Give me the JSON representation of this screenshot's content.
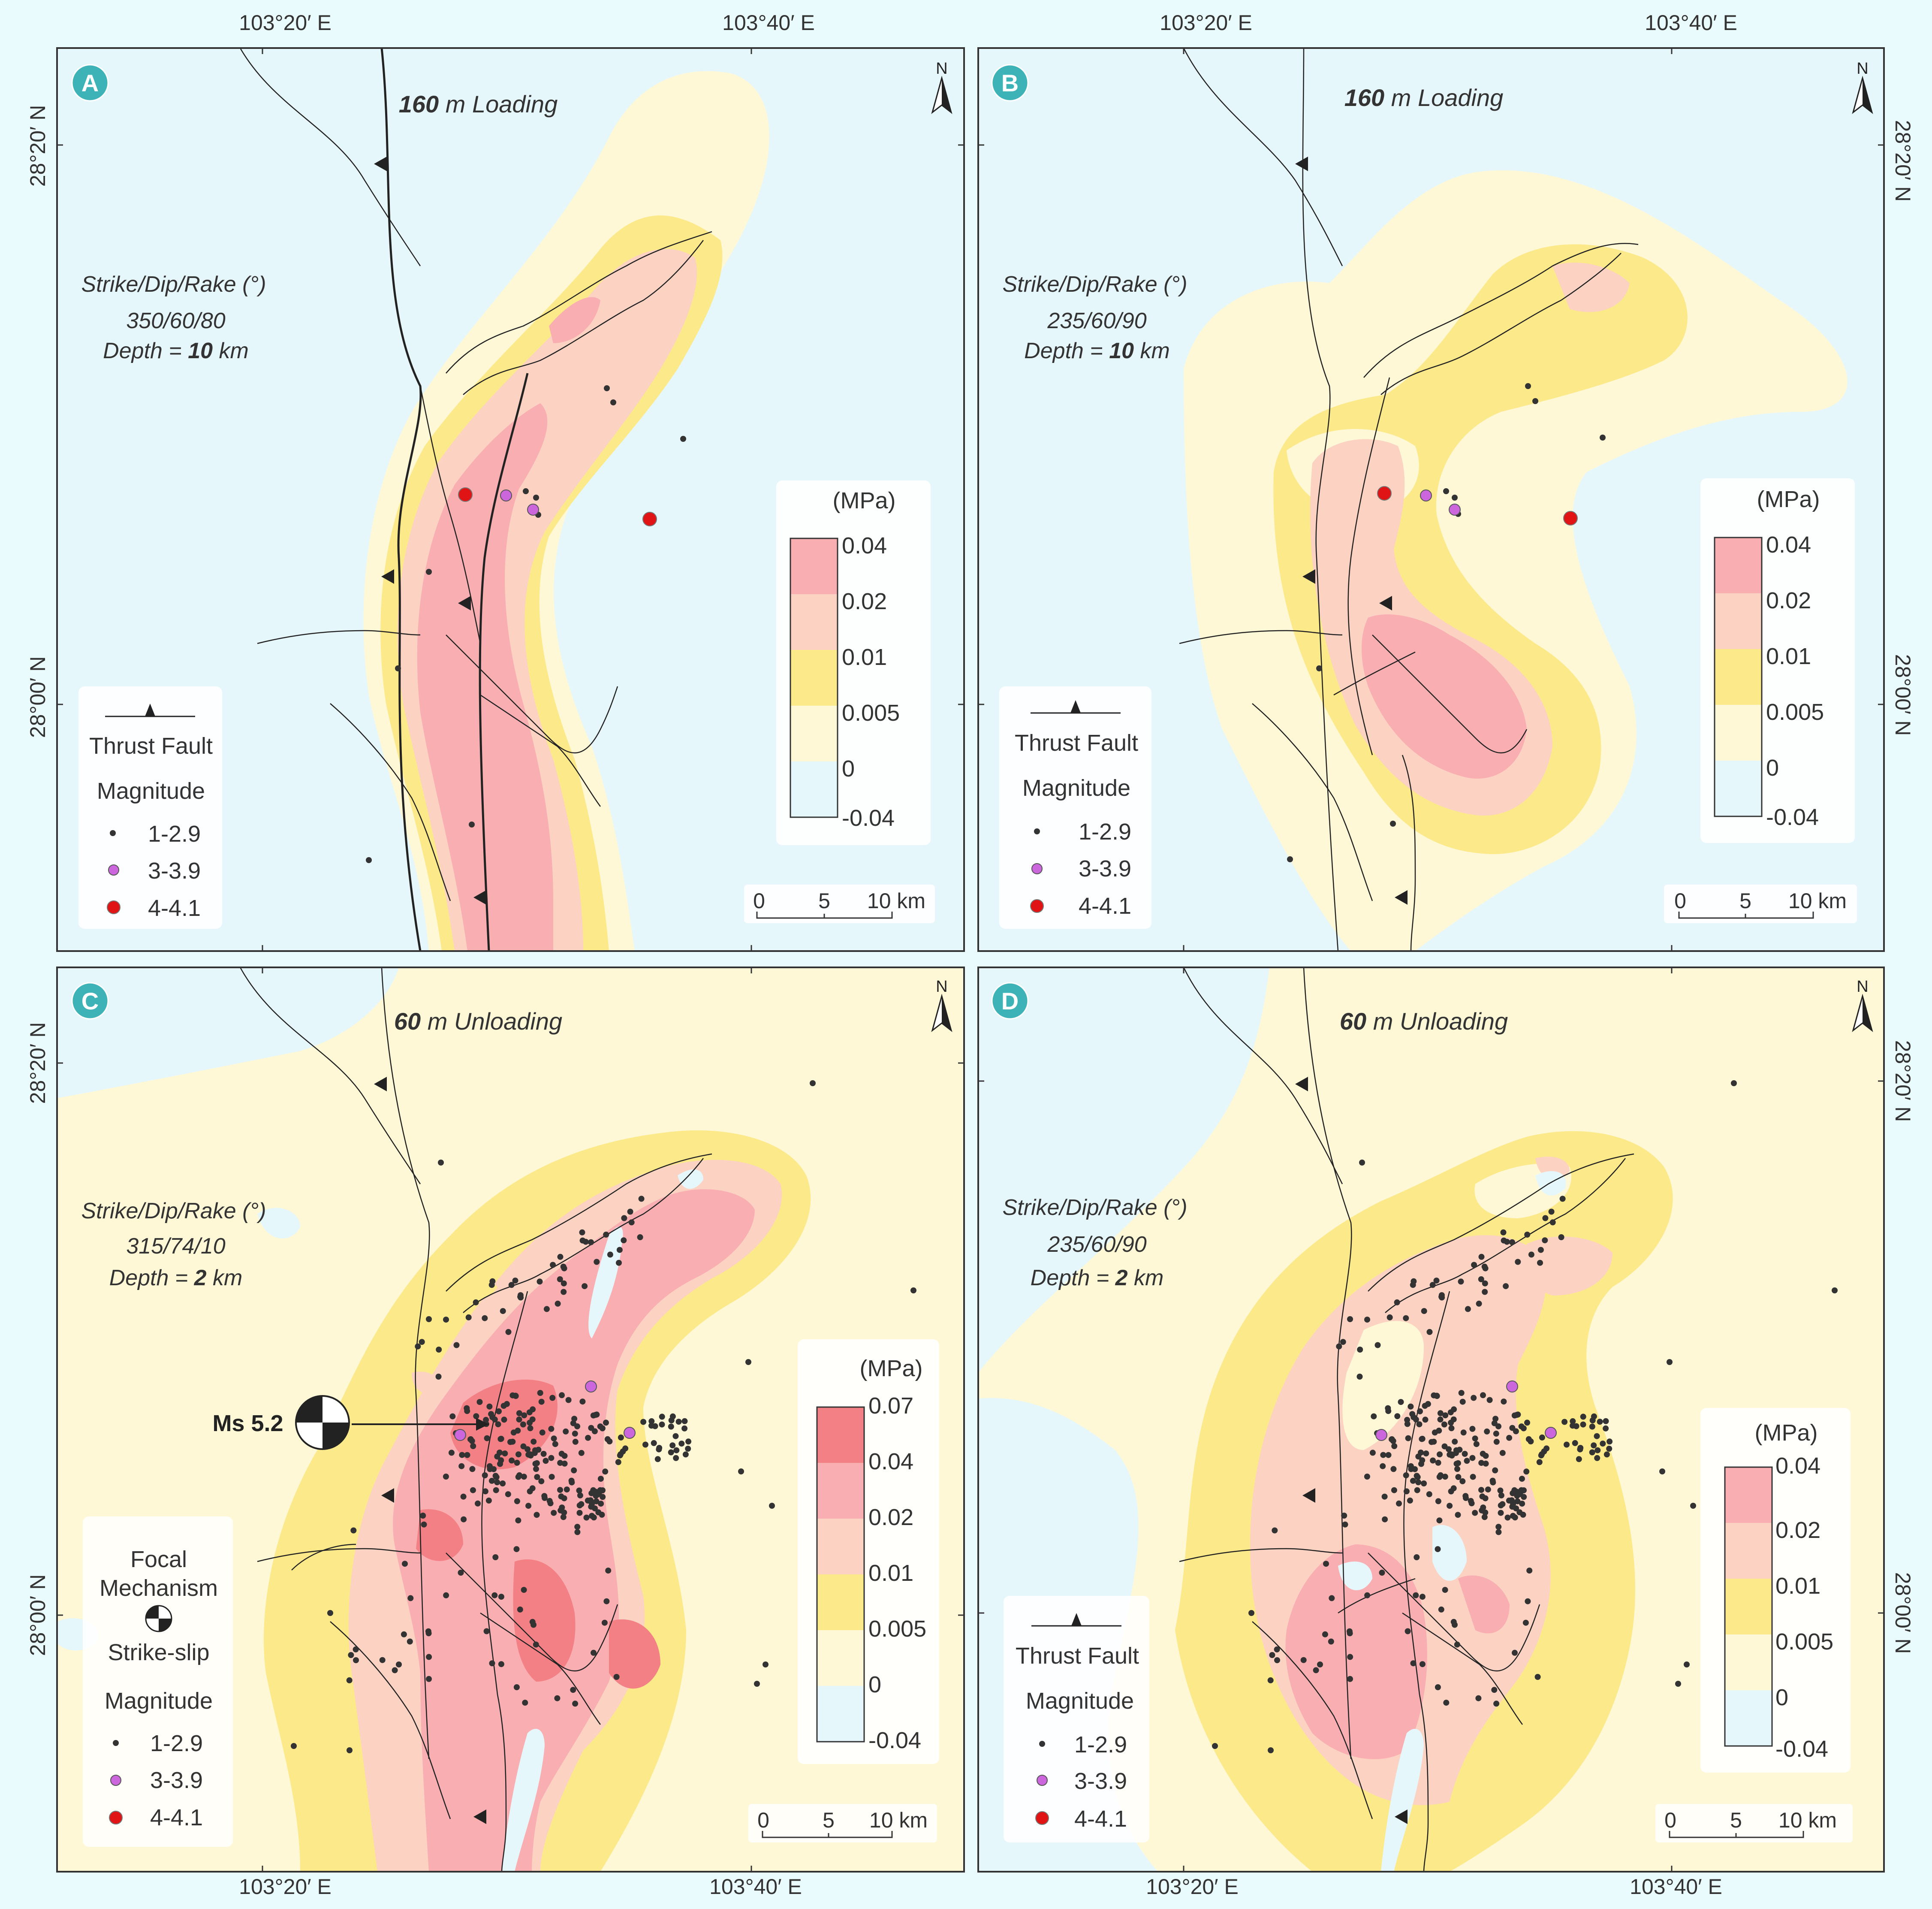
{
  "figure": {
    "colors": {
      "page_bg": "#e9fbfd",
      "neg": "#e6f7fb",
      "c0": "#fef8d6",
      "c0005": "#fce98a",
      "c001": "#fcd2c3",
      "c002": "#f9aeb2",
      "c004": "#f38085",
      "panel_letter_bg": "#3db3b7",
      "event_small": "#333333",
      "event_mid": "#cc66dd",
      "event_large": "#e01414",
      "fault": "#222222"
    },
    "coords": {
      "lon_left": "103°20′ E",
      "lon_right": "103°40′ E",
      "lat_top": "28°20′ N",
      "lat_bottom": "28°00′ N"
    },
    "north_label": "N",
    "scale": {
      "ticks": [
        "0",
        "5",
        "10 km"
      ]
    },
    "legend": {
      "thrust_fault": "Thrust Fault",
      "magnitude": "Magnitude",
      "classes": [
        "1-2.9",
        "3-3.9",
        "4-4.1"
      ],
      "focal_mechanism": [
        "Focal",
        "Mechanism"
      ],
      "strike_slip": "Strike-slip"
    },
    "colorbar_unit": "(MPa)"
  },
  "panels": [
    {
      "letter": "A",
      "title_value": "160",
      "title_rest": " m Loading",
      "params": {
        "label": "Strike/Dip/Rake (°)",
        "value": "350/60/80",
        "depth_prefix": "Depth = ",
        "depth_value": "10",
        "depth_unit": " km"
      },
      "colorbar_ticks": [
        "0.04",
        "0.02",
        "0.01",
        "0.005",
        "0",
        "-0.04"
      ]
    },
    {
      "letter": "B",
      "title_value": "160",
      "title_rest": " m Loading",
      "params": {
        "label": "Strike/Dip/Rake (°)",
        "value": "235/60/90",
        "depth_prefix": "Depth = ",
        "depth_value": "10",
        "depth_unit": " km"
      },
      "colorbar_ticks": [
        "0.04",
        "0.02",
        "0.01",
        "0.005",
        "0",
        "-0.04"
      ]
    },
    {
      "letter": "C",
      "title_value": "60",
      "title_rest": " m Unloading",
      "params": {
        "label": "Strike/Dip/Rake (°)",
        "value": "315/74/10",
        "depth_prefix": "Depth = ",
        "depth_value": "2",
        "depth_unit": " km"
      },
      "colorbar_ticks": [
        "0.07",
        "0.04",
        "0.02",
        "0.01",
        "0.005",
        "0",
        "-0.04"
      ],
      "focal_label": "Ms 5.2"
    },
    {
      "letter": "D",
      "title_value": "60",
      "title_rest": " m Unloading",
      "params": {
        "label": "Strike/Dip/Rake (°)",
        "value": "235/60/90",
        "depth_prefix": "Depth = ",
        "depth_value": "2",
        "depth_unit": " km"
      },
      "colorbar_ticks": [
        "0.04",
        "0.02",
        "0.01",
        "0.005",
        "0",
        "-0.04"
      ]
    }
  ]
}
